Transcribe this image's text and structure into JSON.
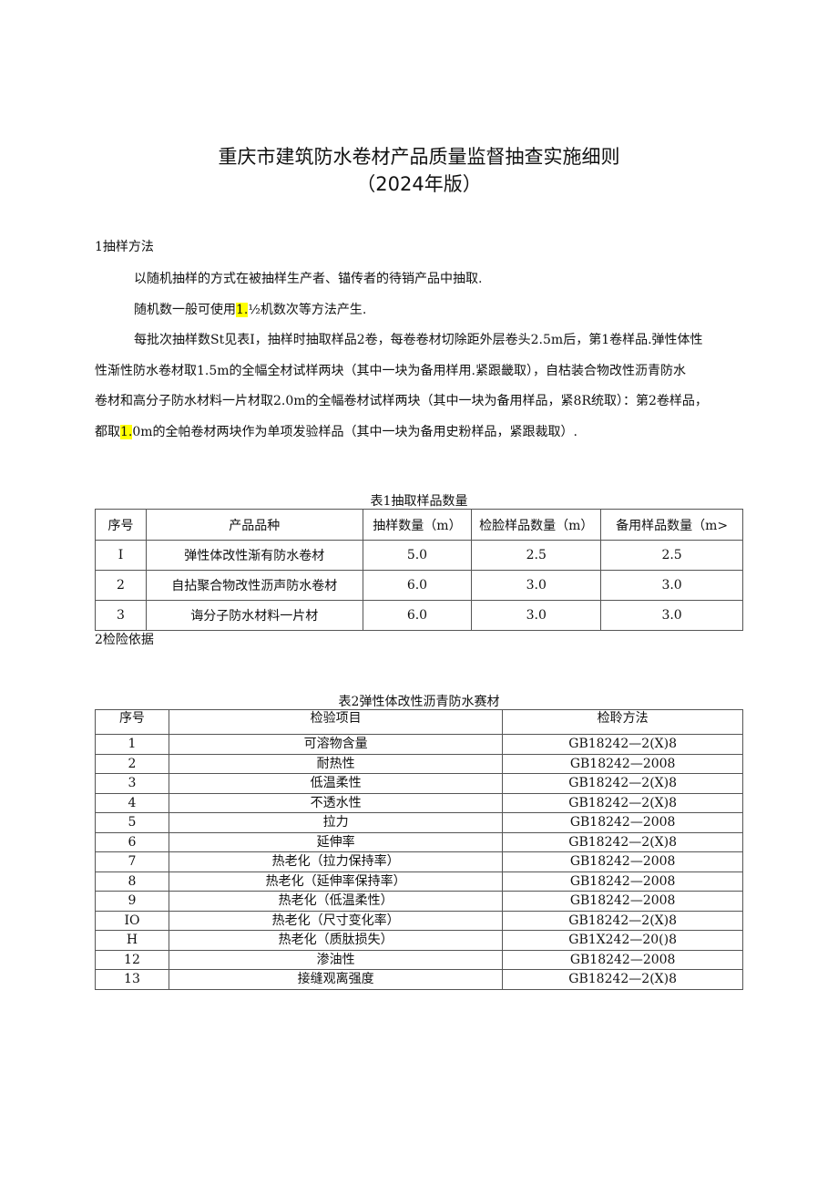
{
  "title": {
    "line1": "重庆市建筑防水卷材产品质量监督抽查实施细则",
    "line2": "（2024年版）"
  },
  "section1": {
    "heading": "1抽样方法",
    "para1": "以随机抽样的方式在被抽样生产者、锚传者的待销产品中抽取.",
    "para2_before": "随机数一般可使用",
    "para2_highlight": "1.",
    "para2_after": "½机数次等方法产生.",
    "para3_line1": "每批次抽样数St见表I，抽样时抽取样品2卷，每卷卷材切除距外层卷头2.5m后，第1卷样品.弹性体性",
    "para3_line2": "性渐性防水卷材取1.5m的全幅全材试样两块（其中一块为备用样用.紧跟畿取），自枯装合物改性沥青防水",
    "para3_line3": "卷材和高分子防水材料一片材取2.0m的全幅卷材试样两块（其中一块为备用样品，紧8R统取）：第2卷样品，",
    "para3_line4_before": "都取",
    "para3_line4_highlight": "1.",
    "para3_line4_after": "0m的全帕卷材两块作为单项发验样品（其中一块为备用史粉样品，紧跟裁取）."
  },
  "table1": {
    "caption": "表1抽取样品数量",
    "headers": [
      "序号",
      "产品品种",
      "抽样数量（m）",
      "检脸样品数量（m）",
      "备用样品数量（m>"
    ],
    "rows": [
      [
        "I",
        "弹性体改性渐有防水卷材",
        "5.0",
        "2.5",
        "2.5"
      ],
      [
        "2",
        "自拈聚合物改性沥声防水卷材",
        "6.0",
        "3.0",
        "3.0"
      ],
      [
        "3",
        "诲分子防水材料一片材",
        "6.0",
        "3.0",
        "3.0"
      ]
    ]
  },
  "section2": {
    "heading": "2检险依据"
  },
  "table2": {
    "caption": "表2弹性体改性沥青防水赛材",
    "headers": [
      "序号",
      "检验项目",
      "检聆方法"
    ],
    "rows": [
      [
        "1",
        "可溶物含量",
        "GB18242—2(X)8"
      ],
      [
        "2",
        "耐热性",
        "GB18242—2008"
      ],
      [
        "3",
        "低温柔性",
        "GB18242—2(X)8"
      ],
      [
        "4",
        "不透水性",
        "GB18242—2(X)8"
      ],
      [
        "5",
        "拉力",
        "GB18242—2008"
      ],
      [
        "6",
        "延伸率",
        "GB18242—2(X)8"
      ],
      [
        "7",
        "热老化（拉力保持率）",
        "GB18242—2008"
      ],
      [
        "8",
        "热老化（延伸率保持率）",
        "GB18242—2008"
      ],
      [
        "9",
        "热老化（低温柔性）",
        "GB18242—2008"
      ],
      [
        "IO",
        "热老化（尺寸变化率）",
        "GB18242—2(X)8"
      ],
      [
        "H",
        "热老化（质肽损失）",
        "GB1X242—20()8"
      ],
      [
        "12",
        "渗油性",
        "GB18242—2008"
      ],
      [
        "13",
        "接缝观离强度",
        "GB18242—2(X)8"
      ]
    ]
  },
  "colors": {
    "highlight": "#ffff00"
  }
}
